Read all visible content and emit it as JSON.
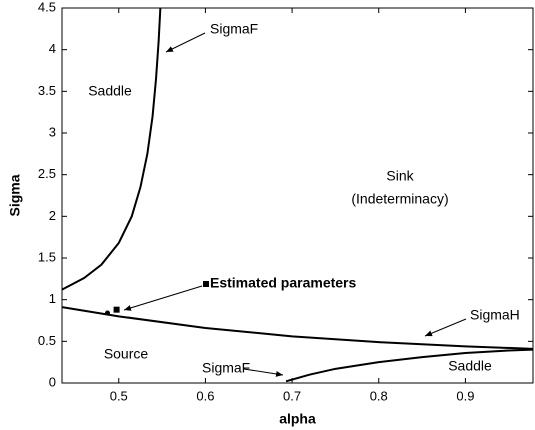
{
  "chart_data": {
    "type": "line",
    "x_label": "alpha",
    "y_label": "Sigma",
    "xlim": [
      0.4345,
      0.978
    ],
    "ylim": [
      0,
      4.5
    ],
    "xticks": [
      0.5,
      0.6,
      0.7,
      0.8,
      0.9
    ],
    "yticks": [
      0,
      0.5,
      1,
      1.5,
      2,
      2.5,
      3,
      3.5,
      4,
      4.5
    ],
    "series": [
      {
        "name": "SigmaF",
        "color": "#000000",
        "x": [
          0.4345,
          0.46,
          0.48,
          0.5,
          0.515,
          0.525,
          0.533,
          0.539,
          0.543,
          0.546,
          0.548
        ],
        "values": [
          1.12,
          1.26,
          1.42,
          1.68,
          2.0,
          2.35,
          2.75,
          3.2,
          3.65,
          4.1,
          4.5
        ]
      },
      {
        "name": "SigmaH",
        "color": "#000000",
        "x": [
          0.4345,
          0.5,
          0.6,
          0.7,
          0.8,
          0.9,
          0.978
        ],
        "values": [
          0.91,
          0.8,
          0.66,
          0.56,
          0.49,
          0.44,
          0.41
        ]
      },
      {
        "name": "SigmaF",
        "color": "#000000",
        "x": [
          0.693,
          0.72,
          0.75,
          0.8,
          0.85,
          0.9,
          0.95,
          0.978
        ],
        "values": [
          0.02,
          0.1,
          0.17,
          0.25,
          0.31,
          0.36,
          0.39,
          0.4
        ]
      },
      {
        "name": "Estimated parameters",
        "color": "#000000",
        "x": [
          0.487,
          0.4975
        ],
        "values": [
          0.84,
          0.88
        ]
      }
    ],
    "annotations": [
      "Saddle",
      "Source",
      "Sink",
      "(Indeterminacy)",
      "Saddle"
    ]
  }
}
